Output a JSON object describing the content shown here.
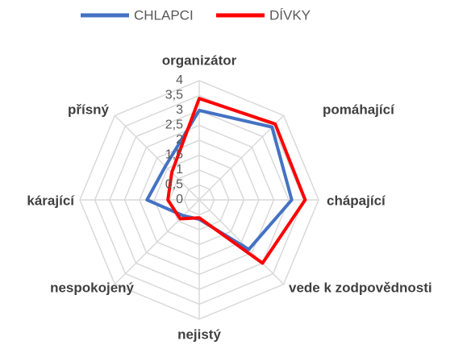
{
  "chart_data": {
    "type": "radar",
    "categories": [
      "organizátor",
      "pomáhající",
      "chápající",
      "vede k zodpovědnosti",
      "nejistý",
      "nespokojený",
      "kárající",
      "přísný"
    ],
    "series": [
      {
        "name": "CHLAPCI",
        "color": "#4472c4",
        "values": [
          3.0,
          3.45,
          3.1,
          2.35,
          0.65,
          0.75,
          1.75,
          1.6
        ]
      },
      {
        "name": "DÍVKY",
        "color": "#ff0000",
        "values": [
          3.4,
          3.6,
          3.55,
          3.0,
          0.6,
          0.9,
          1.05,
          1.3
        ]
      }
    ],
    "rlim": [
      0,
      4
    ],
    "rticks": [
      0,
      {
        "value": 0.5,
        "label": "0,5"
      },
      1,
      {
        "value": 1.5,
        "label": "1,5"
      },
      2,
      {
        "value": 2.5,
        "label": "2,5"
      },
      3,
      {
        "value": 3.5,
        "label": "3,5"
      },
      4
    ],
    "grid": true,
    "legend": "top"
  }
}
